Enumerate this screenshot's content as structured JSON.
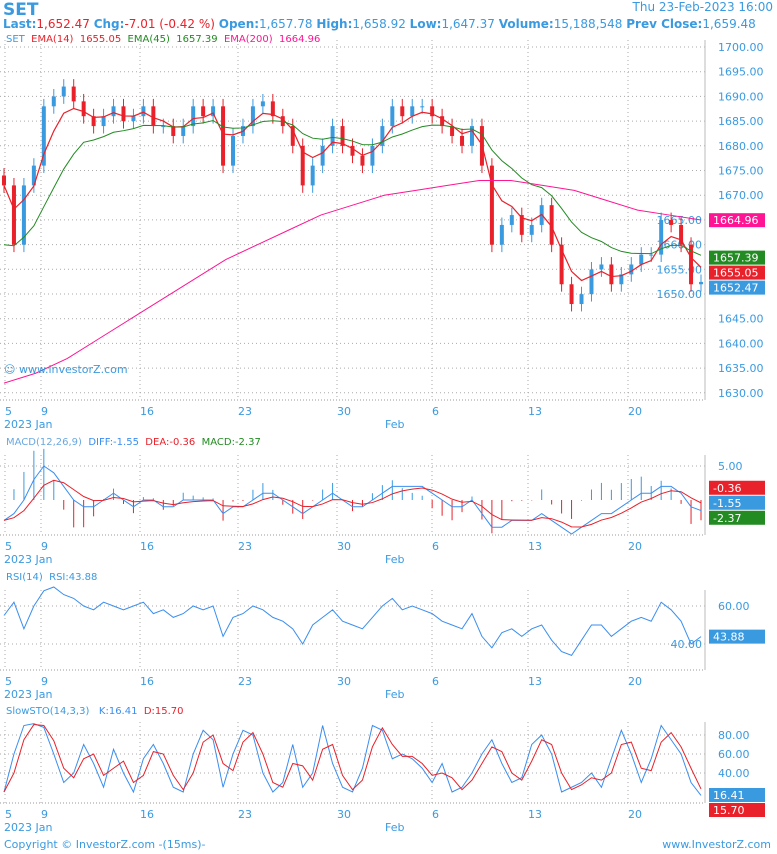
{
  "header": {
    "symbol": "SET",
    "datetime": "Thu 23-Feb-2023 16:00",
    "last_label": "Last:",
    "last": "1,652.47",
    "chg_label": "Chg:",
    "chg": "-7.01 (-0.42 %)",
    "open_label": "Open:",
    "open": "1,657.78",
    "high_label": "High:",
    "high": "1,658.92",
    "low_label": "Low:",
    "low": "1,647.37",
    "volume_label": "Volume:",
    "volume": "15,188,548",
    "prev_label": "Prev Close:",
    "prev": "1,659.48"
  },
  "legends": {
    "price": {
      "sym": "SET",
      "ema14": "EMA(14)",
      "ema14_val": "1655.05",
      "ema45": "EMA(45)",
      "ema45_val": "1657.39",
      "ema200": "EMA(200)",
      "ema200_val": "1664.96"
    },
    "macd": {
      "name": "MACD(12,26,9)",
      "diff": "DIFF:-1.55",
      "dea": "DEA:-0.36",
      "macd": "MACD:-2.37"
    },
    "rsi": {
      "name": "RSI(14)",
      "val": "RSI:43.88"
    },
    "sto": {
      "name": "SlowSTO(14,3,3)",
      "k": "K:16.41",
      "d": "D:15.70"
    }
  },
  "watermark": "www.investorZ.com",
  "footer": {
    "copyright": "Copyright © InvestorZ.com -(15ms)-",
    "site": "www.InvestorZ.com"
  },
  "colors": {
    "up": "#3a9ae0",
    "down": "#e8212a",
    "ema14": "#e8212a",
    "ema45": "#228b22",
    "ema200": "#ff1493",
    "text": "#3a9ae0"
  },
  "chart_data": [
    {
      "type": "candlestick",
      "title": "SET",
      "ylim": [
        1630,
        1700
      ],
      "yticks": [
        "1700.00",
        "1695.00",
        "1690.00",
        "1685.00",
        "1680.00",
        "1675.00",
        "1670.00",
        "1665.00",
        "1660.00",
        "1655.00",
        "1650.00",
        "1645.00",
        "1640.00",
        "1635.00",
        "1630.00"
      ],
      "xticks": [
        "5",
        "9",
        "16",
        "23",
        "30",
        "Feb",
        "6",
        "13",
        "20"
      ],
      "xsub": [
        "2023 Jan",
        "Feb"
      ],
      "close": [
        1672,
        1660,
        1672,
        1676,
        1688,
        1690,
        1692,
        1689,
        1686,
        1684,
        1686,
        1688,
        1685,
        1686,
        1688,
        1684,
        1684,
        1682,
        1684,
        1688,
        1686,
        1688,
        1676,
        1682,
        1684,
        1688,
        1689,
        1686,
        1684,
        1680,
        1672,
        1676,
        1680,
        1684,
        1680,
        1678,
        1676,
        1680,
        1684,
        1688,
        1686,
        1688,
        1688,
        1686,
        1684,
        1682,
        1680,
        1684,
        1676,
        1660,
        1664,
        1666,
        1662,
        1664,
        1668,
        1660,
        1652,
        1648,
        1650,
        1655,
        1656,
        1652,
        1654,
        1656,
        1658,
        1658,
        1665,
        1664,
        1660,
        1652,
        1652.47
      ],
      "ema200": [
        1632,
        1634,
        1637,
        1641,
        1645,
        1649,
        1653,
        1657,
        1660,
        1663,
        1666,
        1668,
        1670,
        1671,
        1672,
        1673,
        1673,
        1672,
        1671,
        1669,
        1667,
        1666,
        1665
      ],
      "badges": [
        {
          "label": "1664.96",
          "value": 1664.96,
          "color": "#ff1493"
        },
        {
          "label": "1657.39",
          "value": 1657.39,
          "color": "#228b22"
        },
        {
          "label": "1655.05",
          "value": 1655.05,
          "color": "#e8212a"
        },
        {
          "label": "1652.47",
          "value": 1652.47,
          "color": "#3a9ae0"
        }
      ]
    },
    {
      "type": "macd",
      "ylim": [
        -5,
        5
      ],
      "yticks": [
        "5.00"
      ],
      "diff": [
        -3,
        -2,
        0,
        3,
        5,
        4,
        2,
        0,
        -1,
        -1,
        0,
        1,
        0,
        -1,
        0,
        0,
        -1,
        -1,
        0,
        0,
        0,
        0,
        -2,
        -1,
        -1,
        0,
        1,
        1,
        0,
        -1,
        -2,
        -1,
        0,
        1,
        0,
        -1,
        -1,
        0,
        1,
        2,
        2,
        2,
        2,
        1,
        0,
        -1,
        -1,
        0,
        -2,
        -4,
        -4,
        -3,
        -3,
        -3,
        -2,
        -3,
        -4,
        -5,
        -4,
        -3,
        -2,
        -2,
        -1,
        0,
        1,
        1,
        2,
        2,
        1,
        -1,
        -1.55
      ],
      "badges": [
        {
          "label": "-0.36",
          "value": 1.8,
          "color": "#e8212a"
        },
        {
          "label": "-1.55",
          "value": -0.3,
          "color": "#3a9ae0"
        },
        {
          "label": "-2.37",
          "value": -2.2,
          "color": "#228b22"
        }
      ]
    },
    {
      "type": "line",
      "name": "RSI",
      "ylim": [
        30,
        75
      ],
      "yticks": [
        "60.00",
        "40.00"
      ],
      "values": [
        55,
        62,
        48,
        60,
        68,
        70,
        66,
        64,
        60,
        58,
        62,
        60,
        58,
        60,
        62,
        56,
        58,
        54,
        56,
        60,
        58,
        60,
        44,
        54,
        56,
        60,
        58,
        54,
        52,
        48,
        40,
        50,
        54,
        58,
        52,
        50,
        48,
        54,
        60,
        64,
        58,
        60,
        58,
        56,
        52,
        50,
        48,
        56,
        44,
        38,
        46,
        48,
        44,
        48,
        50,
        42,
        36,
        34,
        42,
        50,
        50,
        44,
        48,
        52,
        54,
        52,
        62,
        58,
        52,
        40,
        43.88
      ],
      "badges": [
        {
          "label": "43.88",
          "value": 43.88,
          "color": "#3a9ae0"
        }
      ]
    },
    {
      "type": "line",
      "name": "SlowSTO",
      "ylim": [
        0,
        100
      ],
      "yticks": [
        "80.00",
        "60.00",
        "40.00"
      ],
      "k": [
        20,
        60,
        90,
        92,
        88,
        60,
        30,
        40,
        70,
        50,
        25,
        65,
        40,
        20,
        55,
        70,
        50,
        25,
        20,
        60,
        85,
        75,
        25,
        60,
        85,
        80,
        40,
        20,
        30,
        70,
        25,
        40,
        90,
        50,
        25,
        20,
        45,
        90,
        85,
        55,
        60,
        55,
        45,
        30,
        50,
        20,
        25,
        40,
        60,
        75,
        50,
        30,
        35,
        70,
        80,
        60,
        20,
        25,
        30,
        40,
        25,
        55,
        85,
        60,
        30,
        55,
        90,
        75,
        60,
        30,
        16.41
      ],
      "badges": [
        {
          "label": "16.41",
          "value": 16.41,
          "color": "#3a9ae0"
        },
        {
          "label": "15.70",
          "value": 15.7,
          "color": "#e8212a"
        }
      ]
    }
  ]
}
